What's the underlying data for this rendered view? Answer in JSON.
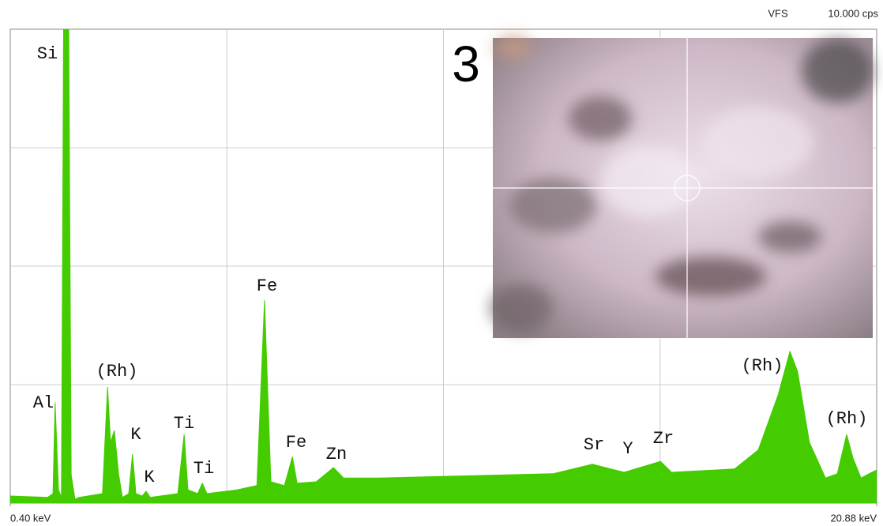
{
  "chart_data": {
    "type": "area",
    "header": {
      "label": "VFS",
      "scale": "10.000 cps"
    },
    "x": [
      0.4,
      1.28,
      1.41,
      1.46,
      1.54,
      1.61,
      1.67,
      1.77,
      1.84,
      1.93,
      2.02,
      2.58,
      2.7,
      2.77,
      2.86,
      2.96,
      3.05,
      3.2,
      3.29,
      3.37,
      3.52,
      3.61,
      3.71,
      4.36,
      4.51,
      4.6,
      4.83,
      4.94,
      5.05,
      5.76,
      6.23,
      6.41,
      6.56,
      6.88,
      7.07,
      7.18,
      7.63,
      8.04,
      8.28,
      9.12,
      11.36,
      13.23,
      14.16,
      14.91,
      15.77,
      16.03,
      17.52,
      18.08,
      18.55,
      18.83,
      19.01,
      19.29,
      19.67,
      19.95,
      20.17,
      20.32,
      20.51,
      20.7,
      20.88
    ],
    "values": [
      0.15,
      0.12,
      0.2,
      2.12,
      0.28,
      0.12,
      12,
      12,
      0.6,
      0.08,
      0.12,
      0.2,
      2.45,
      1.28,
      1.53,
      0.62,
      0.12,
      0.2,
      1.03,
      0.2,
      0.15,
      0.25,
      0.12,
      0.2,
      1.45,
      0.28,
      0.2,
      0.42,
      0.2,
      0.28,
      0.37,
      4.28,
      0.45,
      0.37,
      0.98,
      0.42,
      0.45,
      0.75,
      0.53,
      0.53,
      0.58,
      0.62,
      0.82,
      0.65,
      0.88,
      0.65,
      0.72,
      1.12,
      2.28,
      3.2,
      2.78,
      1.28,
      0.53,
      0.62,
      1.45,
      0.95,
      0.53,
      0.62,
      0.7
    ],
    "color": "#44cc00",
    "xlim": [
      0.4,
      20.88
    ],
    "ylim": [
      0,
      10
    ],
    "xticks": [
      {
        "value": 0.4,
        "label": "0.40 keV"
      },
      {
        "value": 20.88,
        "label": "20.88 keV"
      }
    ],
    "grid": true,
    "grid_divisions": [
      4,
      4
    ],
    "annotations": [
      "Si",
      "(Rh)",
      "Al",
      "K",
      "K",
      "Ti",
      "Ti",
      "Fe",
      "Fe",
      "Zn",
      "Sr",
      "Y",
      "Zr",
      "(Rh)",
      "(Rh)"
    ],
    "inset": {
      "label": "3"
    }
  }
}
